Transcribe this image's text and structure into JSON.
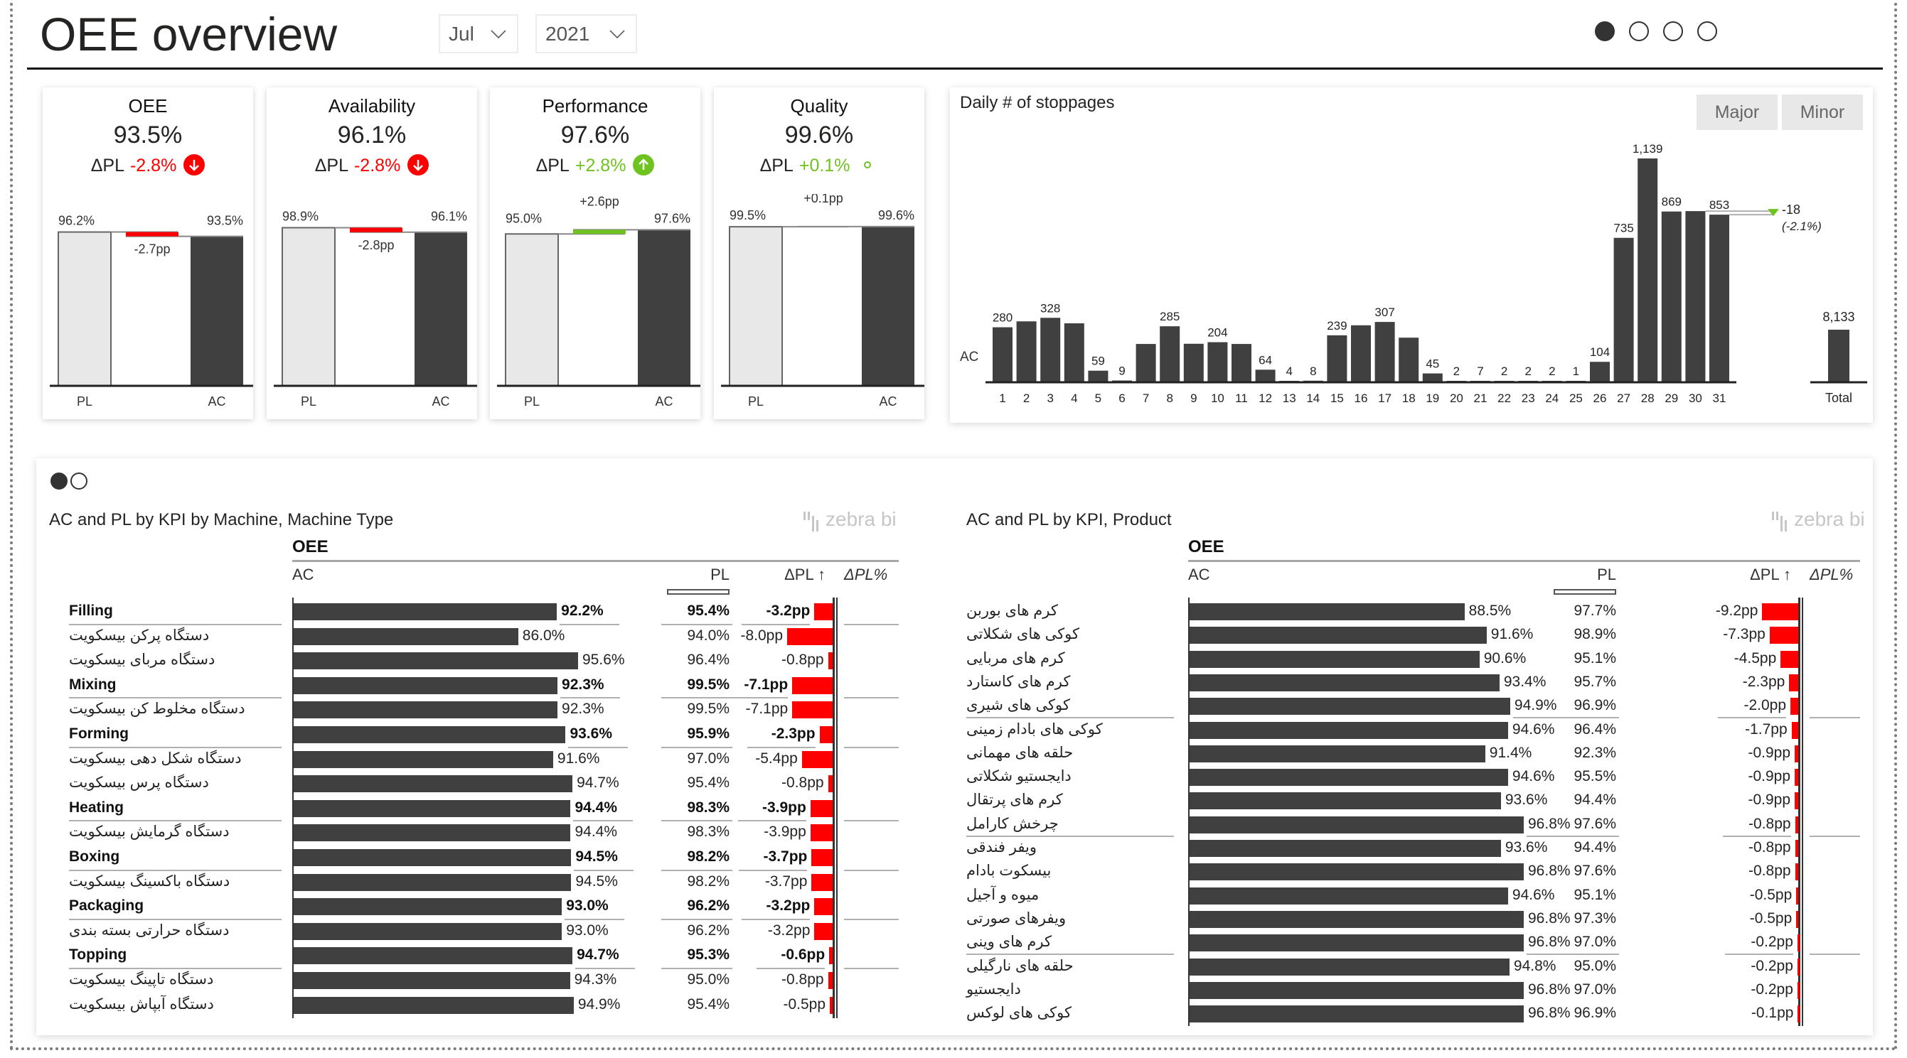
{
  "header": {
    "title": "OEE overview",
    "month_filter": "Jul",
    "year_filter": "2021",
    "page_indicators": [
      true,
      false,
      false,
      false
    ]
  },
  "colors": {
    "ac": "#404040",
    "pl": "#e8e8e8",
    "negative": "#ff0000",
    "positive": "#6fc31f"
  },
  "kpi_cards": [
    {
      "name": "OEE",
      "value": "93.5%",
      "delta_label": "ΔPL",
      "delta": "-2.8%",
      "direction": "down",
      "pl_value": 96.2,
      "ac_value": 93.5,
      "pl_label": "96.2%",
      "ac_label": "93.5%",
      "variance_label": "-2.7pp",
      "pl_axis": "PL",
      "ac_axis": "AC"
    },
    {
      "name": "Availability",
      "value": "96.1%",
      "delta_label": "ΔPL",
      "delta": "-2.8%",
      "direction": "down",
      "pl_value": 98.9,
      "ac_value": 96.1,
      "pl_label": "98.9%",
      "ac_label": "96.1%",
      "variance_label": "-2.8pp",
      "pl_axis": "PL",
      "ac_axis": "AC"
    },
    {
      "name": "Performance",
      "value": "97.6%",
      "delta_label": "ΔPL",
      "delta": "+2.8%",
      "direction": "up",
      "pl_value": 95.0,
      "ac_value": 97.6,
      "pl_label": "95.0%",
      "ac_label": "97.6%",
      "variance_label": "+2.6pp",
      "pl_axis": "PL",
      "ac_axis": "AC"
    },
    {
      "name": "Quality",
      "value": "99.6%",
      "delta_label": "ΔPL",
      "delta": "+0.1%",
      "direction": "neutral",
      "pl_value": 99.5,
      "ac_value": 99.6,
      "pl_label": "99.5%",
      "ac_label": "99.6%",
      "variance_label": "+0.1pp",
      "pl_axis": "PL",
      "ac_axis": "AC"
    }
  ],
  "stoppages": {
    "title": "Daily # of stoppages",
    "buttons": [
      "Major",
      "Minor"
    ],
    "series_label": "AC"
  },
  "chart_data": {
    "type": "bar",
    "title": "Daily # of stoppages",
    "xlabel": "",
    "ylabel": "",
    "categories": [
      "1",
      "2",
      "3",
      "4",
      "5",
      "6",
      "7",
      "8",
      "9",
      "10",
      "11",
      "12",
      "13",
      "14",
      "15",
      "16",
      "17",
      "18",
      "19",
      "20",
      "21",
      "22",
      "23",
      "24",
      "25",
      "26",
      "27",
      "28",
      "29",
      "30",
      "31"
    ],
    "series": [
      {
        "name": "AC",
        "values": [
          280,
          310,
          328,
          300,
          59,
          9,
          195,
          285,
          196,
          204,
          195,
          64,
          4,
          8,
          239,
          290,
          307,
          227,
          45,
          2,
          7,
          2,
          2,
          2,
          1,
          104,
          735,
          1139,
          869,
          871,
          853
        ]
      }
    ],
    "labels": [
      "280",
      "",
      "328",
      "",
      "59",
      "9",
      "",
      "285",
      "",
      "204",
      "",
      "64",
      "4",
      "8",
      "239",
      "",
      "307",
      "",
      "45",
      "2",
      "7",
      "2",
      "2",
      "2",
      "1",
      "104",
      "735",
      "1,139",
      "869",
      "",
      "853"
    ],
    "total": {
      "label": "Total",
      "value": 8133,
      "value_label": "8,133"
    },
    "annotation": {
      "delta": "-18",
      "delta_pct": "(-2.1%)",
      "between": [
        "30",
        "31"
      ]
    },
    "ylim": [
      0,
      1200
    ],
    "grid": false,
    "legend": "none"
  },
  "bottom": {
    "page_indicators": [
      true,
      false
    ],
    "left_table": {
      "title": "AC and PL by KPI by Machine, Machine Type",
      "brand": "zebra bi",
      "kpi": "OEE",
      "columns": {
        "ac": "AC",
        "pl": "PL",
        "dpl": "ΔPL ↑",
        "dplpct": "ΔPL%"
      },
      "rows": [
        {
          "label": "Filling",
          "group": true,
          "ac": 92.2,
          "ac_label": "92.2%",
          "pl": "95.4%",
          "dpl": -3.2,
          "dpl_label": "-3.2pp"
        },
        {
          "label": "دستگاه پرکن بیسکویت",
          "group": false,
          "ac": 86.0,
          "ac_label": "86.0%",
          "pl": "94.0%",
          "dpl": -8.0,
          "dpl_label": "-8.0pp"
        },
        {
          "label": "دستگاه مربای بیسکویت",
          "group": false,
          "ac": 95.6,
          "ac_label": "95.6%",
          "pl": "96.4%",
          "dpl": -0.8,
          "dpl_label": "-0.8pp"
        },
        {
          "label": "Mixing",
          "group": true,
          "ac": 92.3,
          "ac_label": "92.3%",
          "pl": "99.5%",
          "dpl": -7.1,
          "dpl_label": "-7.1pp"
        },
        {
          "label": "دستگاه مخلوط کن بیسکویت",
          "group": false,
          "ac": 92.3,
          "ac_label": "92.3%",
          "pl": "99.5%",
          "dpl": -7.1,
          "dpl_label": "-7.1pp"
        },
        {
          "label": "Forming",
          "group": true,
          "ac": 93.6,
          "ac_label": "93.6%",
          "pl": "95.9%",
          "dpl": -2.3,
          "dpl_label": "-2.3pp"
        },
        {
          "label": "دستگاه شکل دهی بیسکویت",
          "group": false,
          "ac": 91.6,
          "ac_label": "91.6%",
          "pl": "97.0%",
          "dpl": -5.4,
          "dpl_label": "-5.4pp"
        },
        {
          "label": "دستگاه پرس بیسکویت",
          "group": false,
          "ac": 94.7,
          "ac_label": "94.7%",
          "pl": "95.4%",
          "dpl": -0.8,
          "dpl_label": "-0.8pp"
        },
        {
          "label": "Heating",
          "group": true,
          "ac": 94.4,
          "ac_label": "94.4%",
          "pl": "98.3%",
          "dpl": -3.9,
          "dpl_label": "-3.9pp"
        },
        {
          "label": "دستگاه گرمایش بیسکویت",
          "group": false,
          "ac": 94.4,
          "ac_label": "94.4%",
          "pl": "98.3%",
          "dpl": -3.9,
          "dpl_label": "-3.9pp"
        },
        {
          "label": "Boxing",
          "group": true,
          "ac": 94.5,
          "ac_label": "94.5%",
          "pl": "98.2%",
          "dpl": -3.7,
          "dpl_label": "-3.7pp"
        },
        {
          "label": "دستگاه باکسینگ بیسکویت",
          "group": false,
          "ac": 94.5,
          "ac_label": "94.5%",
          "pl": "98.2%",
          "dpl": -3.7,
          "dpl_label": "-3.7pp"
        },
        {
          "label": "Packaging",
          "group": true,
          "ac": 93.0,
          "ac_label": "93.0%",
          "pl": "96.2%",
          "dpl": -3.2,
          "dpl_label": "-3.2pp"
        },
        {
          "label": "دستگاه حرارتی بسته بندی",
          "group": false,
          "ac": 93.0,
          "ac_label": "93.0%",
          "pl": "96.2%",
          "dpl": -3.2,
          "dpl_label": "-3.2pp"
        },
        {
          "label": "Topping",
          "group": true,
          "ac": 94.7,
          "ac_label": "94.7%",
          "pl": "95.3%",
          "dpl": -0.6,
          "dpl_label": "-0.6pp"
        },
        {
          "label": "دستگاه تاپینگ بیسکویت",
          "group": false,
          "ac": 94.3,
          "ac_label": "94.3%",
          "pl": "95.0%",
          "dpl": -0.8,
          "dpl_label": "-0.8pp"
        },
        {
          "label": "دستگاه آبپاش بیسکویت",
          "group": false,
          "ac": 94.9,
          "ac_label": "94.9%",
          "pl": "95.4%",
          "dpl": -0.5,
          "dpl_label": "-0.5pp"
        }
      ]
    },
    "right_table": {
      "title": "AC and PL by KPI, Product",
      "brand": "zebra bi",
      "kpi": "OEE",
      "columns": {
        "ac": "AC",
        "pl": "PL",
        "dpl": "ΔPL ↑",
        "dplpct": "ΔPL%"
      },
      "rows": [
        {
          "label": "کرم های بوربن",
          "ac": 88.5,
          "ac_label": "88.5%",
          "pl": "97.7%",
          "dpl": -9.2,
          "dpl_label": "-9.2pp",
          "sep": false
        },
        {
          "label": "کوکی های شکلاتی",
          "ac": 91.6,
          "ac_label": "91.6%",
          "pl": "98.9%",
          "dpl": -7.3,
          "dpl_label": "-7.3pp",
          "sep": false
        },
        {
          "label": "کرم های مربایی",
          "ac": 90.6,
          "ac_label": "90.6%",
          "pl": "95.1%",
          "dpl": -4.5,
          "dpl_label": "-4.5pp",
          "sep": false
        },
        {
          "label": "کرم های کاستارد",
          "ac": 93.4,
          "ac_label": "93.4%",
          "pl": "95.7%",
          "dpl": -2.3,
          "dpl_label": "-2.3pp",
          "sep": false
        },
        {
          "label": "کوکی های شیری",
          "ac": 94.9,
          "ac_label": "94.9%",
          "pl": "96.9%",
          "dpl": -2.0,
          "dpl_label": "-2.0pp",
          "sep": true
        },
        {
          "label": "کوکی های بادام زمینی",
          "ac": 94.6,
          "ac_label": "94.6%",
          "pl": "96.4%",
          "dpl": -1.7,
          "dpl_label": "-1.7pp",
          "sep": false
        },
        {
          "label": "حلقه های مهمانی",
          "ac": 91.4,
          "ac_label": "91.4%",
          "pl": "92.3%",
          "dpl": -0.9,
          "dpl_label": "-0.9pp",
          "sep": false
        },
        {
          "label": "دایجستیو شکلاتی",
          "ac": 94.6,
          "ac_label": "94.6%",
          "pl": "95.5%",
          "dpl": -0.9,
          "dpl_label": "-0.9pp",
          "sep": false
        },
        {
          "label": "کرم های پرتقال",
          "ac": 93.6,
          "ac_label": "93.6%",
          "pl": "94.4%",
          "dpl": -0.9,
          "dpl_label": "-0.9pp",
          "sep": false
        },
        {
          "label": "چرخش کارامل",
          "ac": 96.8,
          "ac_label": "96.8%",
          "pl": "97.6%",
          "dpl": -0.8,
          "dpl_label": "-0.8pp",
          "sep": true
        },
        {
          "label": "ویفر فندقی",
          "ac": 93.6,
          "ac_label": "93.6%",
          "pl": "94.4%",
          "dpl": -0.8,
          "dpl_label": "-0.8pp",
          "sep": false
        },
        {
          "label": "بیسکوت بادام",
          "ac": 96.8,
          "ac_label": "96.8%",
          "pl": "97.6%",
          "dpl": -0.8,
          "dpl_label": "-0.8pp",
          "sep": false
        },
        {
          "label": "میوه و آجیل",
          "ac": 94.6,
          "ac_label": "94.6%",
          "pl": "95.1%",
          "dpl": -0.5,
          "dpl_label": "-0.5pp",
          "sep": false
        },
        {
          "label": "ویفرهای صورتی",
          "ac": 96.8,
          "ac_label": "96.8%",
          "pl": "97.3%",
          "dpl": -0.5,
          "dpl_label": "-0.5pp",
          "sep": false
        },
        {
          "label": "کرم های وینی",
          "ac": 96.8,
          "ac_label": "96.8%",
          "pl": "97.0%",
          "dpl": -0.2,
          "dpl_label": "-0.2pp",
          "sep": true
        },
        {
          "label": "حلقه های نارگیلی",
          "ac": 94.8,
          "ac_label": "94.8%",
          "pl": "95.0%",
          "dpl": -0.2,
          "dpl_label": "-0.2pp",
          "sep": false
        },
        {
          "label": "دایجستیو",
          "ac": 96.8,
          "ac_label": "96.8%",
          "pl": "97.0%",
          "dpl": -0.2,
          "dpl_label": "-0.2pp",
          "sep": false
        },
        {
          "label": "کوکی های لوکس",
          "ac": 96.8,
          "ac_label": "96.8%",
          "pl": "96.9%",
          "dpl": -0.1,
          "dpl_label": "-0.1pp",
          "sep": false
        }
      ]
    }
  }
}
